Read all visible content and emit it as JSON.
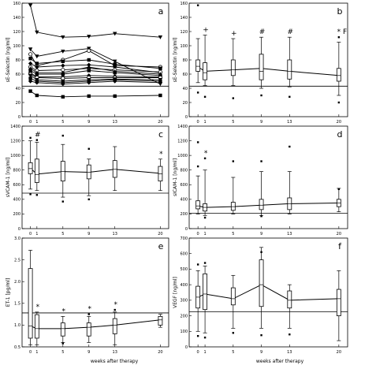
{
  "figure": {
    "xlabel": "weeks after therapy"
  },
  "chart_data": [
    {
      "id": "a",
      "type": "line",
      "panel_label": "a",
      "ylabel": "sE-Selectin [ng/ml]",
      "ylim": [
        0,
        160
      ],
      "yticks": [
        "0",
        "20",
        "40",
        "60",
        "80",
        "100",
        "120",
        "140",
        "160"
      ],
      "xticks": [
        "0",
        "1",
        "5",
        "9",
        "13",
        "20"
      ],
      "x": [
        0,
        1,
        5,
        9,
        13,
        20
      ],
      "reference": 43,
      "series": [
        {
          "values": [
            157,
            119,
            112,
            113,
            117,
            112
          ],
          "marker": "triangle-down"
        },
        {
          "values": [
            95,
            85,
            92,
            96,
            78,
            46
          ],
          "marker": "triangle-down"
        },
        {
          "values": [
            88,
            72,
            80,
            93,
            72,
            70
          ],
          "marker": "circle"
        },
        {
          "values": [
            82,
            75,
            78,
            80,
            74,
            68
          ],
          "marker": "square"
        },
        {
          "values": [
            75,
            70,
            72,
            73,
            70,
            62
          ],
          "marker": "diamond"
        },
        {
          "values": [
            70,
            65,
            66,
            68,
            66,
            63
          ],
          "marker": "circle"
        },
        {
          "values": [
            68,
            62,
            62,
            70,
            64,
            60
          ],
          "marker": "triangle-up"
        },
        {
          "values": [
            65,
            60,
            60,
            65,
            62,
            58
          ],
          "marker": "square"
        },
        {
          "values": [
            62,
            56,
            56,
            58,
            57,
            56
          ],
          "marker": "diamond"
        },
        {
          "values": [
            60,
            55,
            54,
            55,
            55,
            55
          ],
          "marker": "circle"
        },
        {
          "values": [
            58,
            52,
            50,
            52,
            53,
            52
          ],
          "marker": "triangle-down"
        },
        {
          "values": [
            54,
            50,
            48,
            50,
            52,
            50
          ],
          "marker": "square"
        },
        {
          "values": [
            50,
            48,
            46,
            48,
            50,
            48
          ],
          "marker": "diamond"
        },
        {
          "values": [
            36,
            30,
            28,
            29,
            29,
            30
          ],
          "marker": "square"
        }
      ]
    },
    {
      "id": "b",
      "type": "box",
      "panel_label": "b",
      "ylabel": "sE-Selectin [ng/ml]",
      "ylim": [
        0,
        160
      ],
      "yticks": [
        "0",
        "20",
        "40",
        "60",
        "80",
        "100",
        "120",
        "140",
        "160"
      ],
      "xticks": [
        "0",
        "1",
        "5",
        "9",
        "13",
        "20"
      ],
      "reference": 43,
      "median_line": [
        [
          0,
          70
        ],
        [
          1,
          64
        ],
        [
          5,
          66
        ],
        [
          9,
          68
        ],
        [
          13,
          64
        ],
        [
          20,
          58
        ]
      ],
      "boxes": [
        {
          "x": 0,
          "whisker_low": 48,
          "q1": 64,
          "median": 71,
          "q3": 80,
          "whisker_high": 110,
          "outliers": [
            157,
            34
          ]
        },
        {
          "x": 1,
          "whisker_low": 44,
          "q1": 52,
          "median": 62,
          "q3": 76,
          "whisker_high": 115,
          "outliers": [
            28
          ]
        },
        {
          "x": 5,
          "whisker_low": 44,
          "q1": 58,
          "median": 66,
          "q3": 80,
          "whisker_high": 110,
          "outliers": [
            26
          ]
        },
        {
          "x": 9,
          "whisker_low": 40,
          "q1": 52,
          "median": 64,
          "q3": 88,
          "whisker_high": 112,
          "outliers": [
            30
          ]
        },
        {
          "x": 13,
          "whisker_low": 42,
          "q1": 53,
          "median": 64,
          "q3": 80,
          "whisker_high": 112,
          "outliers": [
            28
          ]
        },
        {
          "x": 20,
          "whisker_low": 30,
          "q1": 50,
          "median": 58,
          "q3": 68,
          "whisker_high": 105,
          "outliers": [
            112,
            20
          ]
        }
      ],
      "annotations": [
        {
          "x": 1,
          "text": "+"
        },
        {
          "x": 5,
          "text": "+"
        },
        {
          "x": 9,
          "text": "#"
        },
        {
          "x": 13,
          "text": "#"
        },
        {
          "x": 20,
          "text": "* F"
        }
      ]
    },
    {
      "id": "c",
      "type": "box",
      "panel_label": "c",
      "ylabel": "sVCAM-1 [ng/ml]",
      "ylim": [
        0,
        1400
      ],
      "yticks": [
        "0",
        "200",
        "400",
        "600",
        "800",
        "1000",
        "1200",
        "1400"
      ],
      "xticks": [
        "0",
        "1",
        "5",
        "9",
        "13",
        "20"
      ],
      "reference": 485,
      "median_line": [
        [
          0,
          825
        ],
        [
          1,
          745
        ],
        [
          5,
          780
        ],
        [
          9,
          770
        ],
        [
          13,
          810
        ],
        [
          20,
          755
        ]
      ],
      "boxes": [
        {
          "x": 0,
          "whisker_low": 540,
          "q1": 750,
          "median": 820,
          "q3": 900,
          "whisker_high": 1200,
          "outliers": [
            1240,
            470
          ]
        },
        {
          "x": 1,
          "whisker_low": 520,
          "q1": 630,
          "median": 740,
          "q3": 950,
          "whisker_high": 1180,
          "outliers": [
            1210,
            460
          ]
        },
        {
          "x": 5,
          "whisker_low": 430,
          "q1": 650,
          "median": 780,
          "q3": 920,
          "whisker_high": 1150,
          "outliers": [
            1270,
            370
          ]
        },
        {
          "x": 9,
          "whisker_low": 450,
          "q1": 680,
          "median": 770,
          "q3": 870,
          "whisker_high": 950,
          "outliers": [
            1090,
            400
          ]
        },
        {
          "x": 13,
          "whisker_low": 520,
          "q1": 700,
          "median": 810,
          "q3": 930,
          "whisker_high": 1120,
          "outliers": []
        },
        {
          "x": 20,
          "whisker_low": 520,
          "q1": 650,
          "median": 750,
          "q3": 850,
          "whisker_high": 950,
          "outliers": []
        }
      ],
      "annotations": [
        {
          "x": 1,
          "text": "#"
        },
        {
          "x": 20,
          "text": "*"
        }
      ]
    },
    {
      "id": "d",
      "type": "box",
      "panel_label": "d",
      "ylabel": "sICAM-1 [ng/ml]",
      "ylim": [
        0,
        1400
      ],
      "yticks": [
        "0",
        "200",
        "400",
        "600",
        "800",
        "1000",
        "1200",
        "1400"
      ],
      "xticks": [
        "0",
        "1",
        "5",
        "9",
        "13",
        "20"
      ],
      "reference": 210,
      "median_line": [
        [
          0,
          310
        ],
        [
          1,
          290
        ],
        [
          5,
          300
        ],
        [
          9,
          320
        ],
        [
          13,
          340
        ],
        [
          20,
          350
        ]
      ],
      "boxes": [
        {
          "x": 0,
          "whisker_low": 200,
          "q1": 270,
          "median": 310,
          "q3": 380,
          "whisker_high": 720,
          "outliers": [
            1180,
            850
          ]
        },
        {
          "x": 1,
          "whisker_low": 180,
          "q1": 240,
          "median": 290,
          "q3": 340,
          "whisker_high": 800,
          "outliers": [
            960,
            150
          ]
        },
        {
          "x": 5,
          "whisker_low": 200,
          "q1": 250,
          "median": 300,
          "q3": 360,
          "whisker_high": 700,
          "outliers": [
            920
          ]
        },
        {
          "x": 9,
          "whisker_low": 180,
          "q1": 260,
          "median": 320,
          "q3": 400,
          "whisker_high": 780,
          "outliers": [
            920,
            170
          ]
        },
        {
          "x": 13,
          "whisker_low": 200,
          "q1": 260,
          "median": 340,
          "q3": 420,
          "whisker_high": 780,
          "outliers": [
            1120
          ]
        },
        {
          "x": 20,
          "whisker_low": 230,
          "q1": 300,
          "median": 350,
          "q3": 400,
          "whisker_high": 550,
          "outliers": [
            540
          ]
        }
      ],
      "annotations": [
        {
          "x": 1,
          "text": "*"
        }
      ]
    },
    {
      "id": "e",
      "type": "box",
      "panel_label": "e",
      "ylabel": "ET-1 [pg/ml]",
      "ylim": [
        0.5,
        3.0
      ],
      "yticks": [
        "0.5",
        "1.0",
        "1.5",
        "2.0",
        "2.5",
        "3.0"
      ],
      "xticks": [
        "0",
        "1",
        "5",
        "9",
        "13",
        "20"
      ],
      "reference": 1.28,
      "median_line": [
        [
          0,
          0.98
        ],
        [
          1,
          0.92
        ],
        [
          5,
          0.92
        ],
        [
          9,
          0.95
        ],
        [
          13,
          1.0
        ],
        [
          20,
          1.12
        ]
      ],
      "boxes": [
        {
          "x": 0,
          "whisker_low": 0.55,
          "q1": 0.7,
          "median": 0.98,
          "q3": 2.3,
          "whisker_high": 2.72,
          "outliers": []
        },
        {
          "x": 1,
          "whisker_low": 0.55,
          "q1": 0.7,
          "median": 0.92,
          "q3": 1.24,
          "whisker_high": 1.3,
          "outliers": []
        },
        {
          "x": 5,
          "whisker_low": 0.6,
          "q1": 0.75,
          "median": 0.92,
          "q3": 1.05,
          "whisker_high": 1.2,
          "outliers": [
            0.58
          ]
        },
        {
          "x": 9,
          "whisker_low": 0.6,
          "q1": 0.75,
          "median": 0.95,
          "q3": 1.05,
          "whisker_high": 1.2,
          "outliers": [
            1.25
          ]
        },
        {
          "x": 13,
          "whisker_low": 0.55,
          "q1": 0.8,
          "median": 1.0,
          "q3": 1.15,
          "whisker_high": 1.3,
          "outliers": [
            1.35
          ]
        },
        {
          "x": 20,
          "whisker_low": 0.95,
          "q1": 1.0,
          "median": 1.12,
          "q3": 1.2,
          "whisker_high": 1.25,
          "outliers": []
        }
      ],
      "annotations": [
        {
          "x": 1,
          "text": "*"
        },
        {
          "x": 5,
          "text": "*"
        },
        {
          "x": 9,
          "text": "*"
        },
        {
          "x": 13,
          "text": "*"
        }
      ]
    },
    {
      "id": "f",
      "type": "box",
      "panel_label": "f",
      "ylabel": "VEGF [ng/ml]",
      "ylim": [
        0,
        700
      ],
      "yticks": [
        "0",
        "100",
        "200",
        "300",
        "400",
        "500",
        "600",
        "700"
      ],
      "xticks": [
        "0",
        "1",
        "5",
        "9",
        "13",
        "20"
      ],
      "reference": 225,
      "median_line": [
        [
          0,
          320
        ],
        [
          1,
          340
        ],
        [
          5,
          310
        ],
        [
          9,
          400
        ],
        [
          13,
          300
        ],
        [
          20,
          310
        ]
      ],
      "boxes": [
        {
          "x": 0,
          "whisker_low": 100,
          "q1": 250,
          "median": 320,
          "q3": 390,
          "whisker_high": 490,
          "outliers": [
            530,
            70
          ]
        },
        {
          "x": 1,
          "whisker_low": 90,
          "q1": 240,
          "median": 340,
          "q3": 470,
          "whisker_high": 520,
          "outliers": [
            540,
            60
          ]
        },
        {
          "x": 5,
          "whisker_low": 120,
          "q1": 270,
          "median": 310,
          "q3": 380,
          "whisker_high": 460,
          "outliers": [
            90
          ]
        },
        {
          "x": 9,
          "whisker_low": 120,
          "q1": 260,
          "median": 400,
          "q3": 560,
          "whisker_high": 640,
          "outliers": [
            610,
            75
          ]
        },
        {
          "x": 13,
          "whisker_low": 120,
          "q1": 250,
          "median": 300,
          "q3": 360,
          "whisker_high": 400,
          "outliers": [
            80
          ]
        },
        {
          "x": 20,
          "whisker_low": 40,
          "q1": 200,
          "median": 310,
          "q3": 370,
          "whisker_high": 490,
          "outliers": []
        }
      ],
      "annotations": []
    }
  ]
}
